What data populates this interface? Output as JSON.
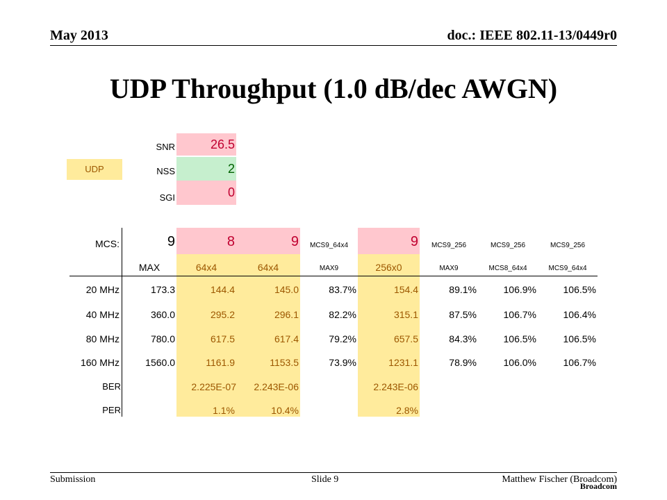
{
  "header": {
    "date": "May 2013",
    "doc_id": "doc.: IEEE 802.11-13/0449r0"
  },
  "title": "UDP Throughput (1.0 dB/dec AWGN)",
  "params": {
    "udp_label": "UDP",
    "snr_label": "SNR",
    "snr_value": "26.5",
    "nss_label": "NSS",
    "nss_value": "2",
    "sgi_label": "SGI",
    "sgi_value": "0"
  },
  "table": {
    "mcs_label": "MCS:",
    "mcs_row": [
      "9",
      "8",
      "9",
      "MCS9_64x4",
      "9",
      "MCS9_256",
      "MCS9_256",
      "MCS9_256"
    ],
    "sub_row": [
      "MAX",
      "64x4",
      "64x4",
      "MAX9",
      "256x0",
      "MAX9",
      "MCS8_64x4",
      "MCS9_64x4"
    ],
    "rows": [
      {
        "label": "20 MHz",
        "values": [
          "173.3",
          "144.4",
          "145.0",
          "83.7%",
          "154.4",
          "89.1%",
          "106.9%",
          "106.5%"
        ]
      },
      {
        "label": "40 MHz",
        "values": [
          "360.0",
          "295.2",
          "296.1",
          "82.2%",
          "315.1",
          "87.5%",
          "106.7%",
          "106.4%"
        ]
      },
      {
        "label": "80 MHz",
        "values": [
          "780.0",
          "617.5",
          "617.4",
          "79.2%",
          "657.5",
          "84.3%",
          "106.5%",
          "106.5%"
        ]
      },
      {
        "label": "160 MHz",
        "values": [
          "1560.0",
          "1161.9",
          "1153.5",
          "73.9%",
          "1231.1",
          "78.9%",
          "106.0%",
          "106.7%"
        ]
      }
    ],
    "ber_label": "BER",
    "ber_values": [
      "2.225E-07",
      "2.243E-06",
      "2.243E-06"
    ],
    "per_label": "PER",
    "per_values": [
      "1.1%",
      "10.4%",
      "2.8%"
    ]
  },
  "footer": {
    "submission": "Submission",
    "slide": "Slide 9",
    "author": "Matthew Fischer (Broadcom)",
    "company": "Broadcom"
  }
}
